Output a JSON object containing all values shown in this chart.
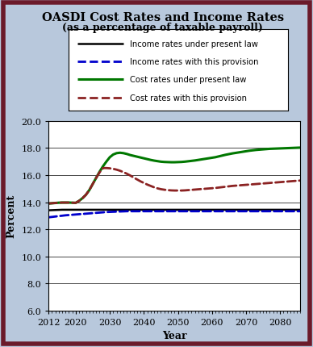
{
  "title": "OASDI Cost Rates and Income Rates",
  "subtitle": "(as a percentage of taxable payroll)",
  "xlabel": "Year",
  "ylabel": "Percent",
  "xlim": [
    2012,
    2086
  ],
  "ylim": [
    6.0,
    20.0
  ],
  "yticks": [
    6.0,
    8.0,
    10.0,
    12.0,
    14.0,
    16.0,
    18.0,
    20.0
  ],
  "xticks": [
    2012,
    2020,
    2030,
    2040,
    2050,
    2060,
    2070,
    2080
  ],
  "background_color": "#b8c8dc",
  "plot_bg": "#ffffff",
  "border_color": "#6b1a2a",
  "years": [
    2012,
    2013,
    2014,
    2015,
    2016,
    2017,
    2018,
    2019,
    2020,
    2021,
    2022,
    2023,
    2024,
    2025,
    2026,
    2027,
    2028,
    2029,
    2030,
    2031,
    2032,
    2033,
    2034,
    2035,
    2036,
    2037,
    2038,
    2039,
    2040,
    2041,
    2042,
    2043,
    2044,
    2045,
    2046,
    2047,
    2048,
    2049,
    2050,
    2051,
    2052,
    2053,
    2054,
    2055,
    2056,
    2057,
    2058,
    2059,
    2060,
    2061,
    2062,
    2063,
    2064,
    2065,
    2066,
    2067,
    2068,
    2069,
    2070,
    2071,
    2072,
    2073,
    2074,
    2075,
    2076,
    2077,
    2078,
    2079,
    2080,
    2081,
    2082,
    2083,
    2084,
    2085,
    2086
  ],
  "income_present_law": [
    13.4,
    13.41,
    13.42,
    13.43,
    13.44,
    13.44,
    13.44,
    13.44,
    13.44,
    13.44,
    13.44,
    13.44,
    13.44,
    13.44,
    13.44,
    13.44,
    13.44,
    13.44,
    13.44,
    13.44,
    13.44,
    13.44,
    13.44,
    13.44,
    13.44,
    13.44,
    13.44,
    13.44,
    13.44,
    13.44,
    13.44,
    13.44,
    13.44,
    13.44,
    13.44,
    13.44,
    13.44,
    13.44,
    13.44,
    13.44,
    13.44,
    13.44,
    13.44,
    13.44,
    13.44,
    13.44,
    13.44,
    13.44,
    13.44,
    13.44,
    13.44,
    13.44,
    13.44,
    13.44,
    13.44,
    13.44,
    13.44,
    13.44,
    13.44,
    13.44,
    13.44,
    13.44,
    13.44,
    13.44,
    13.44,
    13.44,
    13.44,
    13.44,
    13.44,
    13.44,
    13.44,
    13.44,
    13.44,
    13.44,
    13.44
  ],
  "income_provision": [
    12.88,
    12.91,
    12.94,
    12.97,
    13.0,
    13.03,
    13.05,
    13.07,
    13.09,
    13.11,
    13.13,
    13.15,
    13.17,
    13.19,
    13.21,
    13.23,
    13.25,
    13.27,
    13.28,
    13.29,
    13.3,
    13.31,
    13.32,
    13.33,
    13.33,
    13.33,
    13.33,
    13.33,
    13.33,
    13.33,
    13.33,
    13.33,
    13.33,
    13.33,
    13.33,
    13.33,
    13.33,
    13.33,
    13.33,
    13.33,
    13.33,
    13.33,
    13.33,
    13.33,
    13.33,
    13.33,
    13.33,
    13.33,
    13.33,
    13.33,
    13.33,
    13.33,
    13.33,
    13.33,
    13.33,
    13.33,
    13.33,
    13.33,
    13.33,
    13.33,
    13.33,
    13.33,
    13.33,
    13.33,
    13.33,
    13.33,
    13.33,
    13.33,
    13.33,
    13.33,
    13.33,
    13.33,
    13.33,
    13.33,
    13.33
  ],
  "cost_present_law": [
    13.9,
    13.92,
    13.94,
    13.96,
    13.97,
    13.97,
    13.97,
    13.96,
    13.95,
    14.1,
    14.3,
    14.55,
    14.9,
    15.35,
    15.8,
    16.25,
    16.65,
    17.0,
    17.32,
    17.52,
    17.62,
    17.65,
    17.62,
    17.56,
    17.48,
    17.42,
    17.36,
    17.3,
    17.24,
    17.18,
    17.12,
    17.07,
    17.03,
    16.99,
    16.97,
    16.96,
    16.95,
    16.95,
    16.96,
    16.97,
    16.99,
    17.02,
    17.05,
    17.08,
    17.12,
    17.16,
    17.2,
    17.24,
    17.28,
    17.32,
    17.38,
    17.44,
    17.5,
    17.55,
    17.6,
    17.64,
    17.68,
    17.72,
    17.76,
    17.8,
    17.83,
    17.86,
    17.88,
    17.9,
    17.92,
    17.94,
    17.95,
    17.96,
    17.97,
    17.98,
    17.99,
    18.0,
    18.01,
    18.02,
    18.03
  ],
  "cost_provision": [
    13.9,
    13.92,
    13.94,
    13.96,
    13.97,
    13.97,
    13.97,
    13.96,
    13.95,
    14.1,
    14.3,
    14.55,
    14.9,
    15.35,
    15.8,
    16.2,
    16.52,
    16.52,
    16.5,
    16.46,
    16.4,
    16.32,
    16.22,
    16.1,
    15.97,
    15.82,
    15.68,
    15.54,
    15.42,
    15.3,
    15.2,
    15.1,
    15.02,
    14.96,
    14.92,
    14.89,
    14.87,
    14.86,
    14.86,
    14.86,
    14.87,
    14.89,
    14.91,
    14.93,
    14.95,
    14.97,
    14.99,
    15.01,
    15.03,
    15.05,
    15.08,
    15.11,
    15.14,
    15.17,
    15.2,
    15.22,
    15.24,
    15.26,
    15.28,
    15.3,
    15.32,
    15.34,
    15.36,
    15.38,
    15.4,
    15.42,
    15.44,
    15.46,
    15.48,
    15.5,
    15.52,
    15.54,
    15.56,
    15.58,
    15.6
  ],
  "legend_entries": [
    {
      "label": "Income rates under present law",
      "color": "#000000",
      "linestyle": "solid",
      "linewidth": 1.8
    },
    {
      "label": "Income rates with this provision",
      "color": "#0000cc",
      "linestyle": "dashed",
      "linewidth": 2.0
    },
    {
      "label": "Cost rates under present law",
      "color": "#007700",
      "linestyle": "solid",
      "linewidth": 2.2
    },
    {
      "label": "Cost rates with this provision",
      "color": "#8b2222",
      "linestyle": "dashed",
      "linewidth": 2.0
    }
  ]
}
